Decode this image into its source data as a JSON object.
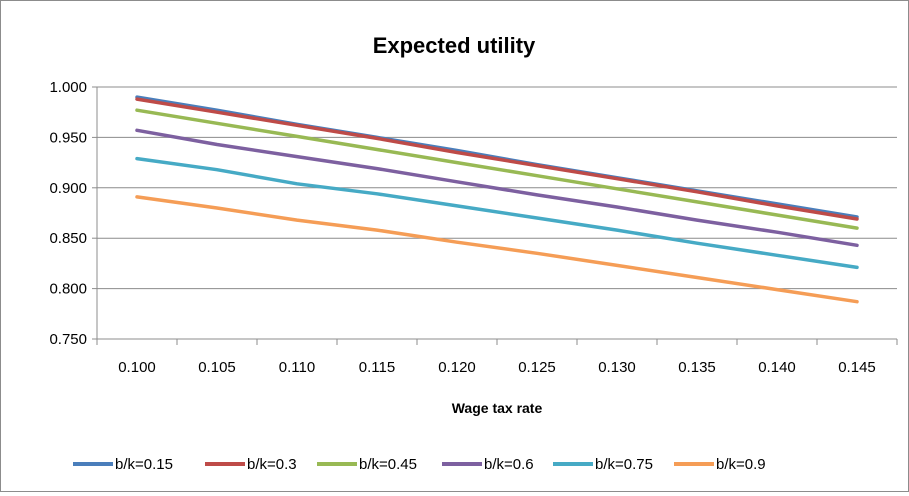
{
  "chart_data": {
    "type": "line",
    "title": "Expected utility",
    "xlabel": "Wage tax rate",
    "ylabel": "",
    "x": [
      "0.100",
      "0.105",
      "0.110",
      "0.115",
      "0.120",
      "0.125",
      "0.130",
      "0.135",
      "0.140",
      "0.145"
    ],
    "yticks": [
      "0.750",
      "0.800",
      "0.850",
      "0.900",
      "0.950",
      "1.000"
    ],
    "ylim": [
      0.75,
      1.0
    ],
    "grid": true,
    "legend_position": "bottom",
    "series": [
      {
        "name": "b/k=0.15",
        "color": "#4a7ebb",
        "values": [
          0.99,
          0.977,
          0.963,
          0.95,
          0.937,
          0.923,
          0.91,
          0.897,
          0.884,
          0.871
        ]
      },
      {
        "name": "b/k=0.3",
        "color": "#be4b48",
        "values": [
          0.988,
          0.975,
          0.962,
          0.949,
          0.935,
          0.922,
          0.909,
          0.896,
          0.882,
          0.869
        ]
      },
      {
        "name": "b/k=0.45",
        "color": "#98b954",
        "values": [
          0.977,
          0.964,
          0.951,
          0.938,
          0.925,
          0.912,
          0.899,
          0.886,
          0.873,
          0.86
        ]
      },
      {
        "name": "b/k=0.6",
        "color": "#7d60a0",
        "values": [
          0.957,
          0.943,
          0.931,
          0.919,
          0.906,
          0.893,
          0.881,
          0.868,
          0.856,
          0.843
        ]
      },
      {
        "name": "b/k=0.75",
        "color": "#46aac5",
        "values": [
          0.929,
          0.918,
          0.904,
          0.894,
          0.882,
          0.87,
          0.858,
          0.845,
          0.833,
          0.821
        ]
      },
      {
        "name": "b/k=0.9",
        "color": "#f59d56",
        "values": [
          0.891,
          0.88,
          0.868,
          0.858,
          0.846,
          0.835,
          0.823,
          0.811,
          0.799,
          0.787
        ]
      }
    ]
  }
}
